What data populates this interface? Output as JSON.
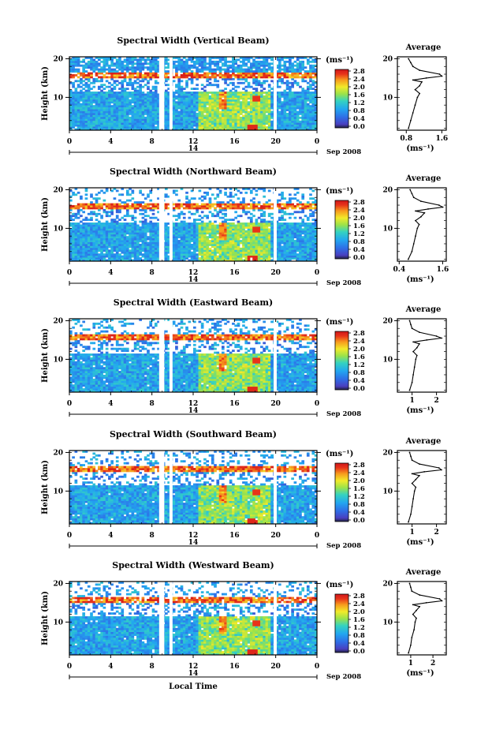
{
  "chart_data": [
    {
      "type": "heatmap",
      "title": "Spectral Width (Vertical Beam)",
      "ylabel": "Height (km)",
      "ylim": [
        1.5,
        20.5
      ],
      "yticks": [
        "20",
        "10"
      ],
      "xlim": [
        0,
        24
      ],
      "xticks": [
        "0",
        "4",
        "8",
        "12",
        "16",
        "20",
        "0"
      ],
      "date_day": "14",
      "date_month": "Sep 2008",
      "gaps": [
        [
          8.7,
          9.2
        ],
        [
          9.7,
          10.0
        ],
        [
          19.8,
          20.1
        ]
      ],
      "colorbar": {
        "unit": "(ms⁻¹)",
        "ticks": [
          "2.8",
          "2.4",
          "2.0",
          "1.6",
          "1.2",
          "0.8",
          "0.4",
          "0.0"
        ]
      },
      "profile": {
        "title": "Average",
        "xlabel": "(ms⁻¹)",
        "xticks": [
          "0.8",
          "1.6"
        ],
        "xlim": [
          0.6,
          1.7
        ],
        "yticks": [
          "20",
          "10"
        ],
        "height_km": [
          2,
          4,
          6,
          8,
          10,
          11,
          12,
          13,
          14,
          14.5,
          15,
          15.5,
          16,
          17,
          18,
          19,
          20
        ],
        "values": [
          0.85,
          0.9,
          0.95,
          1.0,
          1.05,
          1.1,
          1.0,
          1.1,
          1.15,
          0.95,
          1.25,
          1.6,
          1.55,
          1.1,
          0.95,
          0.9,
          0.85
        ]
      }
    },
    {
      "type": "heatmap",
      "title": "Spectral Width (Northward Beam)",
      "ylabel": "Height (km)",
      "ylim": [
        1.5,
        20.5
      ],
      "yticks": [
        "20",
        "10"
      ],
      "xlim": [
        0,
        24
      ],
      "xticks": [
        "0",
        "4",
        "8",
        "12",
        "16",
        "20",
        "0"
      ],
      "date_day": "14",
      "date_month": "Sep 2008",
      "gaps": [
        [
          8.7,
          9.2
        ],
        [
          9.7,
          10.0
        ],
        [
          19.8,
          20.1
        ]
      ],
      "colorbar": {
        "unit": "(ms⁻¹)",
        "ticks": [
          "2.8",
          "2.4",
          "2.0",
          "1.6",
          "1.2",
          "0.8",
          "0.4",
          "0.0"
        ]
      },
      "profile": {
        "title": "Average",
        "xlabel": "(ms⁻¹)",
        "xticks": [
          "0.4",
          "1.6"
        ],
        "xlim": [
          0.35,
          1.7
        ],
        "yticks": [
          "20",
          "10"
        ],
        "height_km": [
          2,
          4,
          6,
          8,
          10,
          11,
          12,
          13,
          14,
          14.5,
          15,
          15.5,
          16,
          17,
          18,
          19,
          20
        ],
        "values": [
          0.65,
          0.75,
          0.8,
          0.85,
          0.9,
          0.95,
          0.85,
          1.0,
          1.1,
          0.85,
          1.2,
          1.6,
          1.5,
          1.0,
          0.8,
          0.75,
          0.7
        ]
      }
    },
    {
      "type": "heatmap",
      "title": "Spectral Width (Eastward Beam)",
      "ylabel": "Height (km)",
      "ylim": [
        1.5,
        20.5
      ],
      "yticks": [
        "20",
        "10"
      ],
      "xlim": [
        0,
        24
      ],
      "xticks": [
        "0",
        "4",
        "8",
        "12",
        "16",
        "20",
        "0"
      ],
      "date_day": "14",
      "date_month": "Sep 2008",
      "gaps": [
        [
          8.7,
          9.2
        ],
        [
          9.7,
          10.0
        ],
        [
          19.8,
          20.1
        ]
      ],
      "colorbar": {
        "unit": "(ms⁻¹)",
        "ticks": [
          "2.8",
          "2.4",
          "2.0",
          "1.6",
          "1.2",
          "0.8",
          "0.4",
          "0.0"
        ]
      },
      "profile": {
        "title": "Average",
        "xlabel": "(ms⁻¹)",
        "xticks": [
          "1",
          "2"
        ],
        "xlim": [
          0.4,
          2.4
        ],
        "yticks": [
          "20",
          "10"
        ],
        "height_km": [
          2,
          4,
          6,
          8,
          10,
          11,
          12,
          13,
          14,
          14.5,
          15,
          15.5,
          16,
          17,
          18,
          19,
          20
        ],
        "values": [
          0.9,
          1.0,
          1.05,
          1.1,
          1.15,
          1.2,
          1.05,
          1.2,
          1.3,
          1.05,
          1.6,
          2.2,
          2.0,
          1.3,
          1.0,
          0.95,
          0.9
        ]
      }
    },
    {
      "type": "heatmap",
      "title": "Spectral Width (Southward Beam)",
      "ylabel": "Height (km)",
      "ylim": [
        1.5,
        20.5
      ],
      "yticks": [
        "20",
        "10"
      ],
      "xlim": [
        0,
        24
      ],
      "xticks": [
        "0",
        "4",
        "8",
        "12",
        "16",
        "20",
        "0"
      ],
      "date_day": "14",
      "date_month": "Sep 2008",
      "gaps": [
        [
          8.7,
          9.2
        ],
        [
          9.7,
          10.0
        ],
        [
          19.8,
          20.1
        ]
      ],
      "colorbar": {
        "unit": "(ms⁻¹)",
        "ticks": [
          "2.8",
          "2.4",
          "2.0",
          "1.6",
          "1.2",
          "0.8",
          "0.4",
          "0.0"
        ]
      },
      "profile": {
        "title": "Average",
        "xlabel": "(ms⁻¹)",
        "xticks": [
          "1",
          "2"
        ],
        "xlim": [
          0.4,
          2.4
        ],
        "yticks": [
          "20",
          "10"
        ],
        "height_km": [
          2,
          4,
          6,
          8,
          10,
          11,
          12,
          13,
          14,
          14.5,
          15,
          15.5,
          16,
          17,
          18,
          19,
          20
        ],
        "values": [
          0.85,
          0.95,
          1.0,
          1.05,
          1.1,
          1.15,
          1.0,
          1.15,
          1.3,
          1.0,
          1.5,
          2.2,
          2.1,
          1.3,
          1.0,
          0.95,
          0.9
        ]
      }
    },
    {
      "type": "heatmap",
      "title": "Spectral Width (Westward Beam)",
      "ylabel": "Height (km)",
      "xlabel": "Local Time",
      "ylim": [
        1.5,
        20.5
      ],
      "yticks": [
        "20",
        "10"
      ],
      "xlim": [
        0,
        24
      ],
      "xticks": [
        "0",
        "4",
        "8",
        "12",
        "16",
        "20",
        "0"
      ],
      "date_day": "14",
      "date_month": "Sep 2008",
      "gaps": [
        [
          8.7,
          9.2
        ],
        [
          9.7,
          10.0
        ],
        [
          19.8,
          20.1
        ]
      ],
      "colorbar": {
        "unit": "(ms⁻¹)",
        "ticks": [
          "2.8",
          "2.4",
          "2.0",
          "1.6",
          "1.2",
          "0.8",
          "0.4",
          "0.0"
        ]
      },
      "profile": {
        "title": "Average",
        "xlabel": "(ms⁻¹)",
        "xticks": [
          "1",
          "2"
        ],
        "xlim": [
          0.4,
          2.6
        ],
        "yticks": [
          "20",
          "10"
        ],
        "height_km": [
          2,
          4,
          6,
          8,
          10,
          11,
          12,
          13,
          14,
          14.5,
          15,
          15.5,
          16,
          17,
          18,
          19,
          20
        ],
        "values": [
          0.9,
          1.0,
          1.05,
          1.15,
          1.2,
          1.25,
          1.1,
          1.25,
          1.4,
          1.1,
          1.7,
          2.4,
          2.3,
          1.4,
          1.05,
          1.0,
          0.95
        ]
      }
    }
  ]
}
